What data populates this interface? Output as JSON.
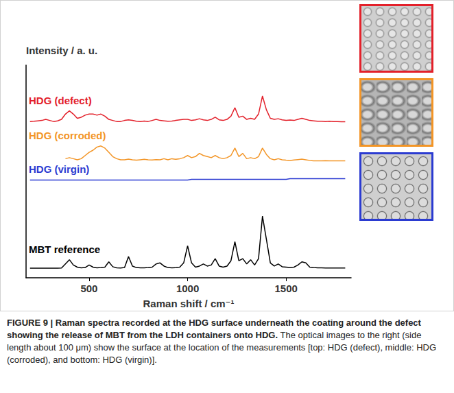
{
  "chart_data": {
    "type": "line",
    "y_label": "Intensity / a. u.",
    "x_label": "Raman shift / cm⁻¹",
    "xlim": [
      180,
      1830
    ],
    "xticks": [
      500,
      1000,
      1500
    ],
    "ylim": [
      0,
      100
    ],
    "tick_labels": "x",
    "grid": false,
    "x": [
      200,
      220,
      240,
      260,
      280,
      300,
      320,
      340,
      360,
      380,
      400,
      420,
      440,
      460,
      480,
      500,
      520,
      540,
      560,
      580,
      600,
      620,
      640,
      660,
      680,
      700,
      720,
      740,
      760,
      780,
      800,
      820,
      840,
      860,
      880,
      900,
      920,
      940,
      960,
      980,
      1000,
      1020,
      1040,
      1060,
      1080,
      1100,
      1120,
      1140,
      1160,
      1180,
      1200,
      1220,
      1240,
      1260,
      1280,
      1300,
      1320,
      1340,
      1360,
      1380,
      1400,
      1420,
      1440,
      1460,
      1480,
      1500,
      1520,
      1540,
      1560,
      1580,
      1600,
      1620,
      1640,
      1660,
      1680,
      1700,
      1720,
      1740,
      1760,
      1780,
      1800
    ],
    "series": [
      {
        "name": "HDG (defect)",
        "color": "#e3202a",
        "values": [
          73.5,
          73.6,
          73.8,
          74,
          74.5,
          74,
          73.5,
          73.8,
          74.5,
          77,
          78.5,
          77,
          75,
          75.5,
          76.5,
          77,
          77,
          76.5,
          77,
          76,
          74.5,
          74,
          73.5,
          73.5,
          74,
          74.3,
          74,
          73.6,
          73.5,
          73.7,
          73.5,
          74,
          74.5,
          74,
          73.8,
          73.6,
          73.7,
          74,
          74.3,
          74.5,
          74.5,
          74,
          74.3,
          74.8,
          74.3,
          74,
          74.5,
          75.5,
          74.3,
          74,
          74.5,
          76,
          80,
          75.5,
          76,
          74.5,
          75,
          74.5,
          77,
          85.5,
          79,
          75,
          74.5,
          74.8,
          74.3,
          74,
          74.2,
          74,
          74.5,
          75,
          74.5,
          74,
          73.8,
          73.6,
          73.6,
          73.5,
          73.6,
          73.5,
          73.5,
          73.4,
          73.4
        ]
      },
      {
        "name": "HDG (corroded)",
        "color": "#f39526",
        "values": [
          null,
          null,
          null,
          null,
          null,
          null,
          null,
          null,
          null,
          56,
          56.5,
          56,
          55.5,
          56,
          57.5,
          59,
          60,
          61.5,
          62,
          61,
          59,
          57,
          56,
          55.5,
          55.5,
          55.8,
          55.5,
          55.3,
          55.5,
          55.7,
          55.5,
          55.4,
          55.6,
          55.5,
          56,
          55.5,
          56,
          55.7,
          56,
          56.5,
          57.5,
          56.5,
          57,
          58.5,
          57.5,
          57,
          56.5,
          57.5,
          56.5,
          56,
          56.5,
          57.5,
          61,
          57,
          58.5,
          56,
          56.5,
          56,
          57,
          61,
          58,
          56,
          55.5,
          56,
          55.5,
          55.3,
          55.2,
          55.4,
          55.6,
          55.8,
          55.5,
          55.2,
          55,
          55,
          55,
          55.1,
          55,
          55,
          55,
          55,
          55
        ]
      },
      {
        "name": "HDG (virgin)",
        "color": "#2b3bd1",
        "values": [
          46,
          46,
          46,
          46,
          46,
          46,
          46,
          46,
          46,
          46,
          46,
          46,
          46,
          46,
          46,
          46,
          46,
          46,
          46,
          46,
          46,
          46,
          46,
          46,
          46,
          46,
          46,
          46,
          46,
          46,
          46,
          46,
          46,
          46,
          46,
          46,
          46,
          46,
          46,
          46,
          46,
          46.3,
          46.3,
          46.3,
          46.3,
          46.3,
          46.3,
          46.3,
          46.3,
          46.3,
          46.3,
          46.3,
          46.3,
          46.3,
          46.3,
          46.3,
          46.3,
          46.3,
          46.3,
          46.3,
          46.3,
          46.3,
          46.3,
          46.3,
          46.3,
          46.3,
          46.6,
          46.6,
          46.6,
          46.6,
          46.6,
          46.6,
          46.6,
          46.6,
          46.6,
          46.6,
          46.6,
          46.6,
          46.6,
          46.6,
          46.6
        ]
      },
      {
        "name": "MBT reference",
        "color": "#000000",
        "values": [
          4.5,
          4.5,
          4.5,
          4.5,
          4.5,
          4.5,
          4.5,
          4.5,
          4.6,
          6.5,
          8.5,
          6,
          5,
          4.7,
          4.8,
          6,
          5,
          4.7,
          4.8,
          5,
          7.5,
          5.2,
          4.7,
          4.6,
          4.8,
          10,
          5.5,
          4.8,
          4.7,
          4.7,
          4.8,
          5,
          6.5,
          7,
          5.5,
          4.8,
          4.7,
          4.8,
          5,
          7,
          15,
          7,
          5,
          5.5,
          6.5,
          5.5,
          6,
          9,
          5.5,
          5,
          5.5,
          8,
          17,
          8,
          9,
          6.5,
          8.5,
          6,
          9,
          29,
          18,
          7,
          5.5,
          6.5,
          5.2,
          5,
          4.8,
          5,
          6,
          7.5,
          7,
          5,
          4.8,
          4.7,
          4.7,
          4.6,
          4.6,
          4.6,
          4.6,
          4.6,
          4.6
        ]
      }
    ]
  },
  "caption": {
    "heading": "FIGURE 9 | Raman spectra recorded at the HDG surface underneath the coating around the defect showing the release of MBT from the LDH containers onto HDG.",
    "text": "The optical images to the right (side length about 100 μm) show the surface at the location of the measurements [top: HDG (defect), middle: HDG (corroded), and bottom: HDG (virgin)]."
  }
}
